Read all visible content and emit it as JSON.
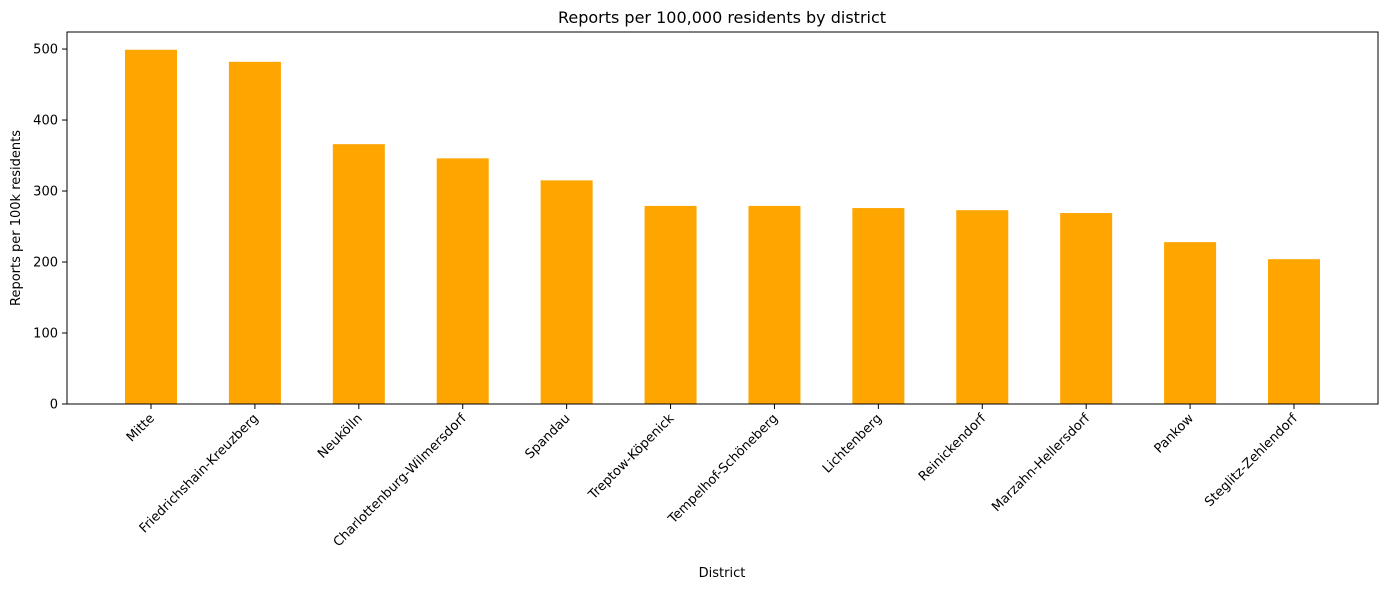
{
  "chart_data": {
    "type": "bar",
    "title": "Reports per 100,000 residents by district",
    "xlabel": "District",
    "ylabel": "Reports per 100k residents",
    "categories": [
      "Mitte",
      "Friedrichshain-Kreuzberg",
      "Neukölln",
      "Charlottenburg-Wilmersdorf",
      "Spandau",
      "Treptow-Köpenick",
      "Tempelhof-Schöneberg",
      "Lichtenberg",
      "Reinickendorf",
      "Marzahn-Hellersdorf",
      "Pankow",
      "Steglitz-Zehlendorf"
    ],
    "values": [
      499,
      482,
      366,
      346,
      315,
      279,
      279,
      276,
      273,
      269,
      228,
      204
    ],
    "ylim": [
      0,
      524
    ],
    "yticks": [
      0,
      100,
      200,
      300,
      400,
      500
    ],
    "bar_color": "#ffa500",
    "grid": false,
    "legend": "none"
  }
}
